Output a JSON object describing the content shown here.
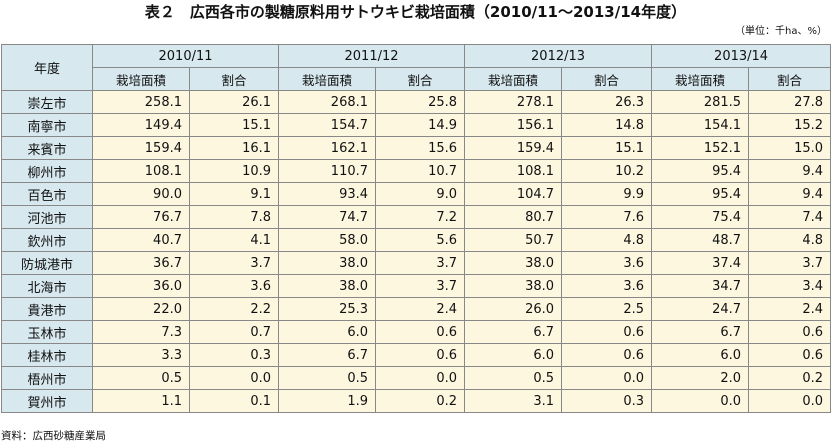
{
  "title": "表２　広西各市の製糖原料用サトウキビ栽培面積（2010/11〜2013/14年度）",
  "unit_note": "（単位：千ha、%）",
  "table": {
    "row_header_label": "年度",
    "seasons": [
      "2010/11",
      "2011/12",
      "2012/13",
      "2013/14"
    ],
    "sub_headers": [
      "栽培面積",
      "割合"
    ],
    "rows": [
      {
        "city": "崇左市",
        "values": [
          "258.1",
          "26.1",
          "268.1",
          "25.8",
          "278.1",
          "26.3",
          "281.5",
          "27.8"
        ]
      },
      {
        "city": "南寧市",
        "values": [
          "149.4",
          "15.1",
          "154.7",
          "14.9",
          "156.1",
          "14.8",
          "154.1",
          "15.2"
        ]
      },
      {
        "city": "来賓市",
        "values": [
          "159.4",
          "16.1",
          "162.1",
          "15.6",
          "159.4",
          "15.1",
          "152.1",
          "15.0"
        ]
      },
      {
        "city": "柳州市",
        "values": [
          "108.1",
          "10.9",
          "110.7",
          "10.7",
          "108.1",
          "10.2",
          "95.4",
          "9.4"
        ]
      },
      {
        "city": "百色市",
        "values": [
          "90.0",
          "9.1",
          "93.4",
          "9.0",
          "104.7",
          "9.9",
          "95.4",
          "9.4"
        ]
      },
      {
        "city": "河池市",
        "values": [
          "76.7",
          "7.8",
          "74.7",
          "7.2",
          "80.7",
          "7.6",
          "75.4",
          "7.4"
        ]
      },
      {
        "city": "欽州市",
        "values": [
          "40.7",
          "4.1",
          "58.0",
          "5.6",
          "50.7",
          "4.8",
          "48.7",
          "4.8"
        ]
      },
      {
        "city": "防城港市",
        "values": [
          "36.7",
          "3.7",
          "38.0",
          "3.7",
          "38.0",
          "3.6",
          "37.4",
          "3.7"
        ]
      },
      {
        "city": "北海市",
        "values": [
          "36.0",
          "3.6",
          "38.0",
          "3.7",
          "38.0",
          "3.6",
          "34.7",
          "3.4"
        ]
      },
      {
        "city": "貴港市",
        "values": [
          "22.0",
          "2.2",
          "25.3",
          "2.4",
          "26.0",
          "2.5",
          "24.7",
          "2.4"
        ]
      },
      {
        "city": "玉林市",
        "values": [
          "7.3",
          "0.7",
          "6.0",
          "0.6",
          "6.7",
          "0.6",
          "6.7",
          "0.6"
        ]
      },
      {
        "city": "桂林市",
        "values": [
          "3.3",
          "0.3",
          "6.7",
          "0.6",
          "6.0",
          "0.6",
          "6.0",
          "0.6"
        ]
      },
      {
        "city": "梧州市",
        "values": [
          "0.5",
          "0.0",
          "0.5",
          "0.0",
          "0.5",
          "0.0",
          "2.0",
          "0.2"
        ]
      },
      {
        "city": "賀州市",
        "values": [
          "1.1",
          "0.1",
          "1.9",
          "0.2",
          "3.1",
          "0.3",
          "0.0",
          "0.0"
        ]
      }
    ]
  },
  "source": "資料：広西砂糖産業局",
  "colors": {
    "header_bg": "#d7e8ef",
    "cell_bg": "#fdf7e0",
    "border": "#888888"
  }
}
